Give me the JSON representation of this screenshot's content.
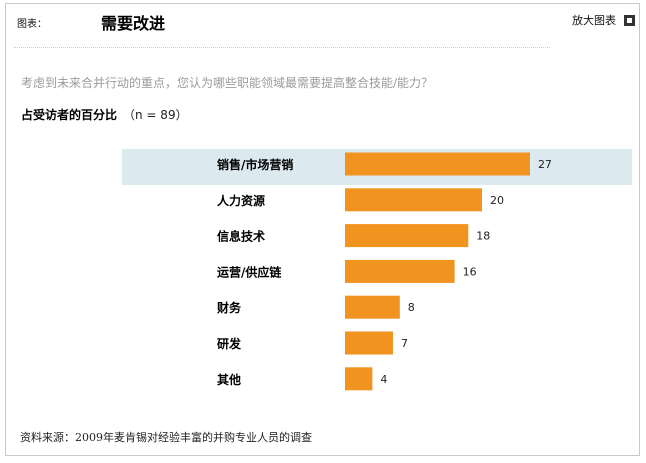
{
  "header": {
    "label": "图表：",
    "title": "需要改进",
    "enlarge_label": "放大图表"
  },
  "question": "考虑到未来合并行动的重点，您认为哪些职能领域最需要提高整合技能/能力？",
  "subtitle": {
    "main": "占受访者的百分比",
    "n": "（n = 89）"
  },
  "source": "资料来源：2009年麦肯锡对经验丰富的并购专业人员的调查",
  "colors": {
    "bar": "#f0931f",
    "highlight": "#dce9ef"
  },
  "chart_data": {
    "type": "bar",
    "orientation": "horizontal",
    "categories": [
      "销售/市场营销",
      "人力资源",
      "信息技术",
      "运营/供应链",
      "财务",
      "研发",
      "其他"
    ],
    "values": [
      27,
      20,
      18,
      16,
      8,
      7,
      4
    ],
    "title": "需要改进",
    "xlabel": "",
    "ylabel": "",
    "highlighted_category": "销售/市场营销",
    "grid": false,
    "legend": "none"
  }
}
